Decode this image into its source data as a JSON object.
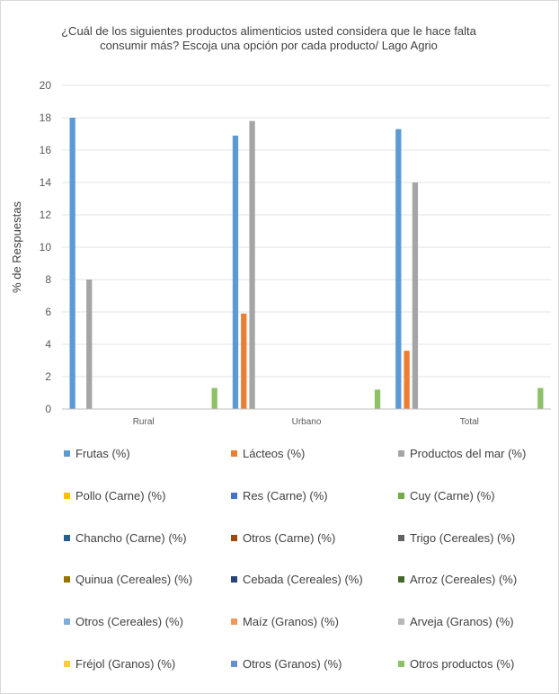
{
  "chart_data": {
    "type": "bar",
    "title_lines": [
      "¿Cuál de los siguientes productos alimenticios usted considera que le hace falta",
      "consumir más? Escoja una opción por cada producto/ Lago Agrio"
    ],
    "ylabel": "% de Respuestas",
    "xlabel": "",
    "ylim": [
      0,
      20
    ],
    "yticks": [
      0,
      2,
      4,
      6,
      8,
      10,
      12,
      14,
      16,
      18,
      20
    ],
    "grid": true,
    "legend_position": "bottom",
    "categories": [
      "Rural",
      "Urbano",
      "Total"
    ],
    "series": [
      {
        "name": "Frutas (%)",
        "color": "#5b9bd5",
        "values": [
          18.0,
          16.9,
          17.3
        ]
      },
      {
        "name": "Lácteos (%)",
        "color": "#ed7d31",
        "values": [
          0,
          5.9,
          3.6
        ]
      },
      {
        "name": "Productos del mar (%)",
        "color": "#a5a5a5",
        "values": [
          8.0,
          17.8,
          14.0
        ]
      },
      {
        "name": "Pollo (Carne) (%)",
        "color": "#ffc000",
        "values": [
          0,
          0,
          0
        ]
      },
      {
        "name": "Res (Carne) (%)",
        "color": "#4472c4",
        "values": [
          0,
          0,
          0
        ]
      },
      {
        "name": "Cuy (Carne) (%)",
        "color": "#70ad47",
        "values": [
          0,
          0,
          0
        ]
      },
      {
        "name": "Chancho (Carne) (%)",
        "color": "#255e91",
        "values": [
          0,
          0,
          0
        ]
      },
      {
        "name": "Otros (Carne) (%)",
        "color": "#9e480e",
        "values": [
          0,
          0,
          0
        ]
      },
      {
        "name": "Trigo (Cereales) (%)",
        "color": "#636363",
        "values": [
          0,
          0,
          0
        ]
      },
      {
        "name": "Quinua (Cereales) (%)",
        "color": "#997300",
        "values": [
          0,
          0,
          0
        ]
      },
      {
        "name": "Cebada (Cereales) (%)",
        "color": "#264478",
        "values": [
          0,
          0,
          0
        ]
      },
      {
        "name": "Arroz (Cereales) (%)",
        "color": "#43682b",
        "values": [
          0,
          0,
          0
        ]
      },
      {
        "name": "Otros (Cereales) (%)",
        "color": "#7cafdd",
        "values": [
          0,
          0,
          0
        ]
      },
      {
        "name": "Maíz (Granos) (%)",
        "color": "#f1975a",
        "values": [
          0,
          0,
          0
        ]
      },
      {
        "name": "Arveja (Granos) (%)",
        "color": "#b7b7b7",
        "values": [
          0,
          0,
          0
        ]
      },
      {
        "name": "Fréjol (Granos) (%)",
        "color": "#ffcd33",
        "values": [
          0,
          0,
          0
        ]
      },
      {
        "name": "Otros (Granos) (%)",
        "color": "#698ed0",
        "values": [
          0,
          0,
          0
        ]
      },
      {
        "name": "Otros productos (%)",
        "color": "#8cc168",
        "values": [
          1.3,
          1.2,
          1.3
        ]
      }
    ]
  }
}
